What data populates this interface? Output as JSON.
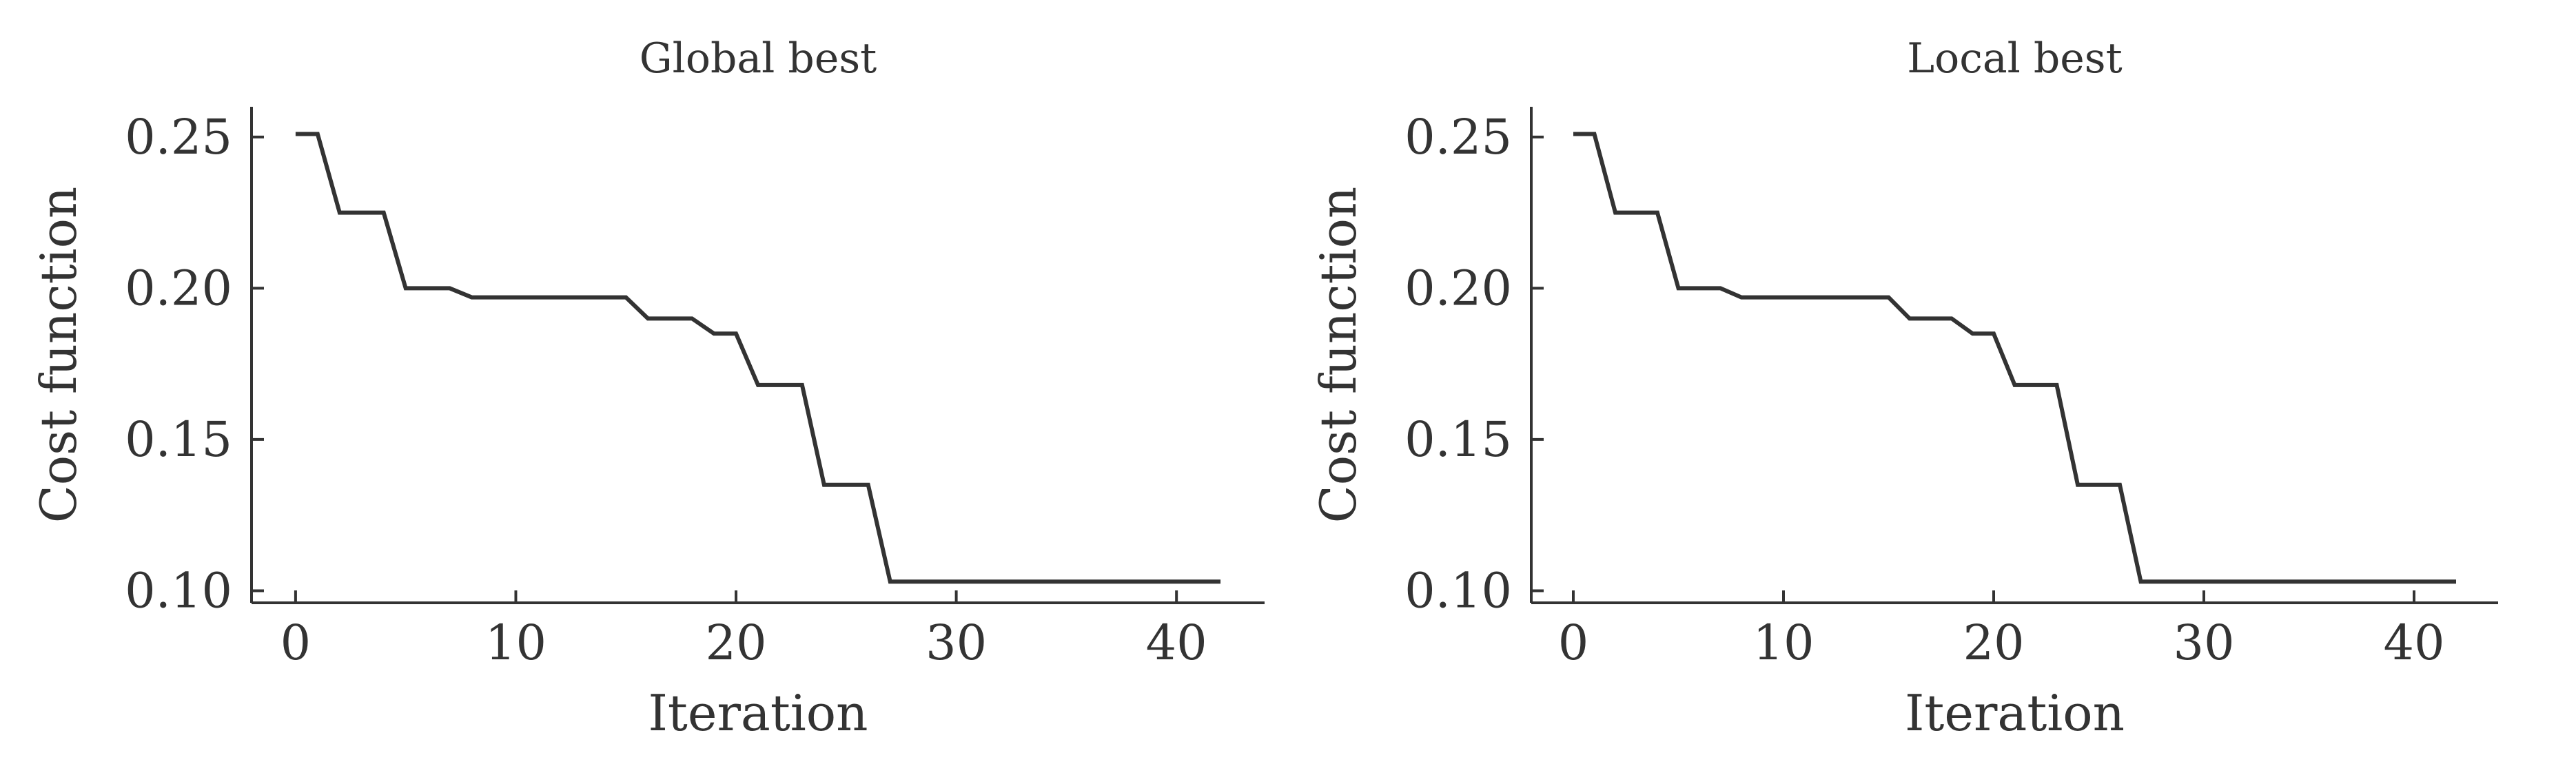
{
  "chart_data": [
    {
      "type": "line",
      "title": "Global best",
      "xlabel": "Iteration",
      "ylabel": "Cost function",
      "xlim": [
        -2,
        44
      ],
      "ylim": [
        0.096,
        0.26
      ],
      "xticks": [
        0,
        10,
        20,
        30,
        40
      ],
      "xtick_labels": [
        "0",
        "10",
        "20",
        "30",
        "40"
      ],
      "yticks": [
        0.1,
        0.15,
        0.2,
        0.25
      ],
      "ytick_labels": [
        "0.10",
        "0.15",
        "0.20",
        "0.25"
      ],
      "grid": false,
      "series": [
        {
          "x": [
            0,
            1,
            2,
            3,
            4,
            5,
            6,
            7,
            8,
            9,
            10,
            11,
            12,
            13,
            14,
            15,
            16,
            17,
            18,
            19,
            20,
            21,
            22,
            23,
            24,
            25,
            26,
            27,
            28,
            29,
            30,
            31,
            32,
            33,
            34,
            35,
            36,
            37,
            38,
            39,
            40,
            41,
            42
          ],
          "y": [
            0.251,
            0.251,
            0.225,
            0.225,
            0.225,
            0.2,
            0.2,
            0.2,
            0.197,
            0.197,
            0.197,
            0.197,
            0.197,
            0.197,
            0.197,
            0.197,
            0.19,
            0.19,
            0.19,
            0.185,
            0.185,
            0.168,
            0.168,
            0.168,
            0.135,
            0.135,
            0.135,
            0.103,
            0.103,
            0.103,
            0.103,
            0.103,
            0.103,
            0.103,
            0.103,
            0.103,
            0.103,
            0.103,
            0.103,
            0.103,
            0.103,
            0.103,
            0.103
          ]
        }
      ]
    },
    {
      "type": "line",
      "title": "Local best",
      "xlabel": "Iteration",
      "ylabel": "Cost function",
      "xlim": [
        -2,
        44
      ],
      "ylim": [
        0.096,
        0.26
      ],
      "xticks": [
        0,
        10,
        20,
        30,
        40
      ],
      "xtick_labels": [
        "0",
        "10",
        "20",
        "30",
        "40"
      ],
      "yticks": [
        0.1,
        0.15,
        0.2,
        0.25
      ],
      "ytick_labels": [
        "0.10",
        "0.15",
        "0.20",
        "0.25"
      ],
      "grid": false,
      "series": [
        {
          "x": [
            0,
            1,
            2,
            3,
            4,
            5,
            6,
            7,
            8,
            9,
            10,
            11,
            12,
            13,
            14,
            15,
            16,
            17,
            18,
            19,
            20,
            21,
            22,
            23,
            24,
            25,
            26,
            27,
            28,
            29,
            30,
            31,
            32,
            33,
            34,
            35,
            36,
            37,
            38,
            39,
            40,
            41,
            42
          ],
          "y": [
            0.251,
            0.251,
            0.225,
            0.225,
            0.225,
            0.2,
            0.2,
            0.2,
            0.197,
            0.197,
            0.197,
            0.197,
            0.197,
            0.197,
            0.197,
            0.197,
            0.19,
            0.19,
            0.19,
            0.185,
            0.185,
            0.168,
            0.168,
            0.168,
            0.135,
            0.135,
            0.135,
            0.103,
            0.103,
            0.103,
            0.103,
            0.103,
            0.103,
            0.103,
            0.103,
            0.103,
            0.103,
            0.103,
            0.103,
            0.103,
            0.103,
            0.103,
            0.103
          ]
        }
      ]
    }
  ]
}
